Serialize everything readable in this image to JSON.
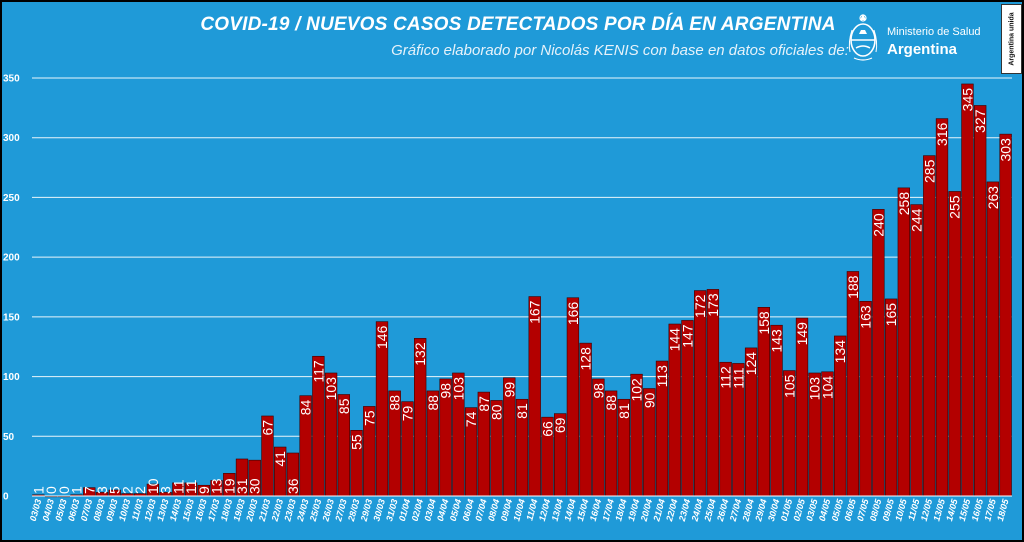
{
  "header": {
    "title": "COVID-19  /  NUEVOS CASOS DETECTADOS POR DÍA EN ARGENTINA",
    "subtitle": "Gráfico elaborado por Nicolás KENIS con base en datos oficiales de:"
  },
  "logo": {
    "line1": "Ministerio de Salud",
    "line2": "Argentina",
    "icon": "argentina-seal-icon"
  },
  "badge": {
    "text": "Argentina unida"
  },
  "colors": {
    "background": "#1f9ad8",
    "bar": "#b30000",
    "bar_edge": "#3a0000",
    "grid": "#ffffff",
    "text": "#ffffff"
  },
  "chart_data": {
    "type": "bar",
    "title": "COVID-19  /  NUEVOS CASOS DETECTADOS POR DÍA EN ARGENTINA",
    "subtitle": "Gráfico elaborado por Nicolás KENIS con base en datos oficiales de:",
    "xlabel": "",
    "ylabel": "",
    "ylim": [
      0,
      350
    ],
    "yticks": [
      0,
      50,
      100,
      150,
      200,
      250,
      300,
      350
    ],
    "grid": true,
    "legend": "none",
    "categories": [
      "03/03",
      "04/03",
      "05/03",
      "06/03",
      "07/03",
      "08/03",
      "09/03",
      "10/03",
      "11/03",
      "12/03",
      "13/03",
      "14/03",
      "15/03",
      "16/03",
      "17/03",
      "18/03",
      "19/03",
      "20/03",
      "21/03",
      "22/03",
      "23/03",
      "24/03",
      "25/03",
      "26/03",
      "27/03",
      "28/03",
      "29/03",
      "30/03",
      "31/03",
      "01/04",
      "02/04",
      "03/04",
      "04/04",
      "05/04",
      "06/04",
      "07/04",
      "08/04",
      "09/04",
      "10/04",
      "11/04",
      "12/04",
      "13/04",
      "14/04",
      "15/04",
      "16/04",
      "17/04",
      "18/04",
      "19/04",
      "20/04",
      "21/04",
      "22/04",
      "23/04",
      "24/04",
      "25/04",
      "26/04",
      "27/04",
      "28/04",
      "29/04",
      "30/04",
      "01/05",
      "02/05",
      "03/05",
      "04/05",
      "05/05",
      "06/05",
      "07/05",
      "08/05",
      "09/05",
      "10/05",
      "11/05",
      "12/05",
      "13/05",
      "14/05",
      "15/05",
      "16/05",
      "17/05",
      "18/05"
    ],
    "values": [
      1,
      0,
      0,
      1,
      7,
      3,
      5,
      2,
      2,
      10,
      3,
      11,
      11,
      9,
      13,
      19,
      31,
      30,
      67,
      41,
      36,
      84,
      117,
      103,
      85,
      55,
      75,
      146,
      88,
      79,
      132,
      88,
      98,
      103,
      74,
      87,
      80,
      99,
      81,
      167,
      66,
      69,
      166,
      128,
      98,
      88,
      81,
      102,
      90,
      113,
      144,
      147,
      172,
      173,
      112,
      111,
      124,
      158,
      143,
      105,
      149,
      103,
      104,
      134,
      188,
      163,
      240,
      165,
      258,
      244,
      285,
      316,
      255,
      345,
      327,
      263,
      303
    ]
  }
}
